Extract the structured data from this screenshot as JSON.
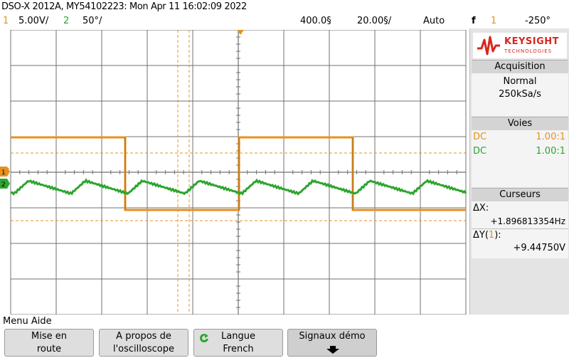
{
  "header": {
    "title": "DSO-X 2012A, MY54102223: Mon Apr 11 16:02:09 2022"
  },
  "status": {
    "ch1_num": "1",
    "ch1_scale": "5.00V/",
    "ch2_num": "2",
    "ch2_scale": "50°/",
    "time_delay": "400.0§",
    "timebase": "20.00§/",
    "trigger_mode": "Auto",
    "trigger_icon": "f",
    "trigger_ch": "1",
    "trigger_level": "-250°"
  },
  "panel": {
    "brand": "KEYSIGHT",
    "brand_sub": "TECHNOLOGIES",
    "acq_title": "Acquisition",
    "acq_mode": "Normal",
    "acq_rate": "250kSa/s",
    "voies_title": "Voies",
    "ch1_coupling": "DC",
    "ch1_probe": "1.00:1",
    "ch2_coupling": "DC",
    "ch2_probe": "1.00:1",
    "curs_title": "Curseurs",
    "dx_label": "ΔX:",
    "dx_value": "+1.896813354Hz",
    "dy_label_a": "ΔY(",
    "dy_label_ch": "1",
    "dy_label_b": "):",
    "dy_value": "+9.44750V"
  },
  "menu": {
    "title": "Menu Aide",
    "keys": [
      {
        "l1": "Mise en",
        "l2": "route"
      },
      {
        "l1": "A propos de",
        "l2": "l'oscilloscope"
      },
      {
        "l1": "Langue",
        "l2": "French"
      },
      {
        "l1": "Signaux démo",
        "l2": ""
      }
    ]
  },
  "screen_labels": {
    "ch1_marker": "1",
    "ch2_marker": "2",
    "trig_marker": "T"
  },
  "colors": {
    "ch1": "#e8901e",
    "ch2": "#2ea52e",
    "grid": "#808080",
    "brand": "#d9261c"
  },
  "icons": {
    "refresh": "refresh-icon",
    "down": "down-arrow-icon",
    "logo": "keysight-wave-icon"
  }
}
